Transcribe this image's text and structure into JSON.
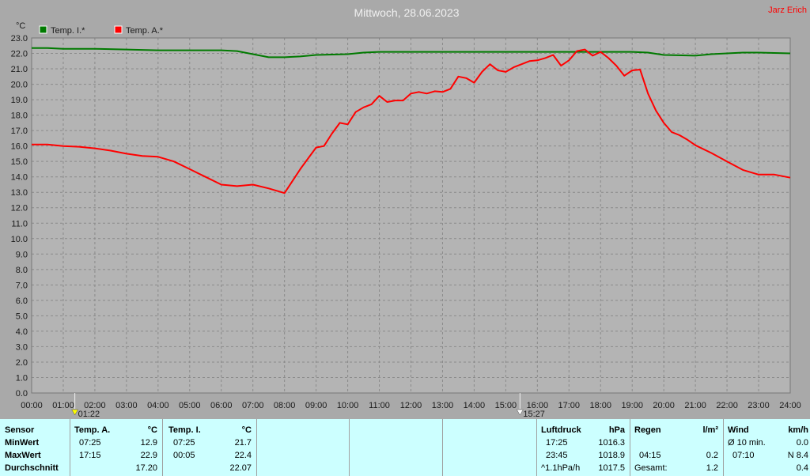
{
  "page_title": "Mittwoch, 28.06.2023",
  "author": "Jarz Erich",
  "colors": {
    "background": "#a9a9a9",
    "plot_bg": "#b4b4b4",
    "temp_inside": "#007a00",
    "temp_outside": "#ff0000",
    "grid": "#8a8a8a",
    "table_bg": "#ccffff"
  },
  "chart_data": {
    "type": "line",
    "title": "Mittwoch, 28.06.2023",
    "ylabel": "°C",
    "xlabel": "",
    "xlim": [
      0,
      24
    ],
    "ylim": [
      0,
      23
    ],
    "grid": true,
    "legend_placement": "top-left",
    "x_tick_labels": [
      "00:00",
      "01:00",
      "02:00",
      "03:00",
      "04:00",
      "05:00",
      "06:00",
      "07:00",
      "08:00",
      "09:00",
      "10:00",
      "11:00",
      "12:00",
      "13:00",
      "14:00",
      "15:00",
      "16:00",
      "17:00",
      "18:00",
      "19:00",
      "20:00",
      "21:00",
      "22:00",
      "23:00",
      "24:00"
    ],
    "y_tick_labels": [
      "0.0",
      "1.0",
      "2.0",
      "3.0",
      "4.0",
      "5.0",
      "6.0",
      "7.0",
      "8.0",
      "9.0",
      "10.0",
      "11.0",
      "12.0",
      "13.0",
      "14.0",
      "15.0",
      "16.0",
      "17.0",
      "18.0",
      "19.0",
      "20.0",
      "21.0",
      "22.0",
      "23.0"
    ],
    "series": [
      {
        "name": "Temp. I.*",
        "color": "#007a00",
        "x": [
          0,
          0.5,
          1,
          2,
          3,
          4,
          5,
          6,
          6.5,
          7,
          7.5,
          8,
          8.5,
          9,
          10,
          10.5,
          11,
          12,
          13,
          14,
          15,
          16,
          17,
          18,
          19,
          19.5,
          20,
          21,
          21.5,
          22,
          22.5,
          23,
          24
        ],
        "y": [
          22.35,
          22.35,
          22.3,
          22.3,
          22.25,
          22.2,
          22.2,
          22.2,
          22.15,
          21.95,
          21.75,
          21.75,
          21.8,
          21.9,
          21.95,
          22.05,
          22.1,
          22.1,
          22.1,
          22.1,
          22.1,
          22.1,
          22.1,
          22.1,
          22.1,
          22.05,
          21.9,
          21.85,
          21.95,
          22.0,
          22.05,
          22.05,
          22.0
        ]
      },
      {
        "name": "Temp. A.*",
        "color": "#ff0000",
        "x": [
          0,
          0.5,
          1,
          1.5,
          2,
          2.5,
          3,
          3.5,
          4,
          4.5,
          5,
          5.5,
          6,
          6.5,
          7,
          7.5,
          8,
          8.5,
          9,
          9.25,
          9.5,
          9.75,
          10,
          10.25,
          10.5,
          10.75,
          11,
          11.25,
          11.5,
          11.75,
          12,
          12.25,
          12.5,
          12.75,
          13,
          13.25,
          13.5,
          13.75,
          14,
          14.25,
          14.5,
          14.75,
          15,
          15.25,
          15.5,
          15.75,
          16,
          16.25,
          16.5,
          16.75,
          17,
          17.25,
          17.5,
          17.75,
          18,
          18.25,
          18.5,
          18.75,
          19,
          19.25,
          19.5,
          19.75,
          20,
          20.25,
          20.5,
          20.75,
          21,
          21.5,
          22,
          22.5,
          23,
          23.5,
          24
        ],
        "y": [
          16.1,
          16.1,
          16.0,
          15.95,
          15.85,
          15.7,
          15.5,
          15.35,
          15.3,
          15.0,
          14.5,
          14.0,
          13.5,
          13.4,
          13.5,
          13.25,
          12.95,
          14.5,
          15.9,
          16.0,
          16.8,
          17.5,
          17.4,
          18.2,
          18.5,
          18.7,
          19.25,
          18.85,
          18.95,
          18.95,
          19.4,
          19.5,
          19.4,
          19.55,
          19.5,
          19.7,
          20.5,
          20.4,
          20.1,
          20.8,
          21.3,
          20.9,
          20.8,
          21.1,
          21.3,
          21.5,
          21.55,
          21.7,
          21.9,
          21.2,
          21.55,
          22.15,
          22.25,
          21.85,
          22.1,
          21.7,
          21.2,
          20.55,
          20.9,
          20.95,
          19.4,
          18.3,
          17.5,
          16.9,
          16.7,
          16.4,
          16.05,
          15.55,
          15.0,
          14.45,
          14.15,
          14.15,
          13.95
        ]
      }
    ],
    "markers": [
      {
        "label": "01:22",
        "x": 1.3667,
        "color": "#ffff00"
      },
      {
        "label": "15:27",
        "x": 15.45,
        "color": "#ffffff"
      }
    ]
  },
  "stats": {
    "sensor_header": "Sensor",
    "rows": [
      "MinWert",
      "MaxWert",
      "Durchschnitt"
    ],
    "temp_a": {
      "header": "Temp. A.",
      "unit": "°C",
      "min_time": "07:25",
      "min_val": "12.9",
      "max_time": "17:15",
      "max_val": "22.9",
      "avg": "17.20"
    },
    "temp_i": {
      "header": "Temp. I.",
      "unit": "°C",
      "min_time": "07:25",
      "min_val": "21.7",
      "max_time": "00:05",
      "max_val": "22.4",
      "avg": "22.07"
    },
    "pressure": {
      "header": "Luftdruck",
      "unit": "hPa",
      "min_time": "17:25",
      "min_val": "1016.3",
      "max_time": "23:45",
      "max_val": "1018.9",
      "trend": "^1.1hPa/h",
      "avg": "1017.5"
    },
    "rain": {
      "header": "Regen",
      "unit": "l/m²",
      "max_time": "04:15",
      "max_val": "0.2",
      "total_label": "Gesamt:",
      "total": "1.2"
    },
    "wind": {
      "header": "Wind",
      "unit": "km/h",
      "min_label": "Ø 10 min.",
      "min_val": "0.0",
      "max_time": "07:10",
      "max_val": "N 8.4",
      "avg": "0.4"
    }
  }
}
